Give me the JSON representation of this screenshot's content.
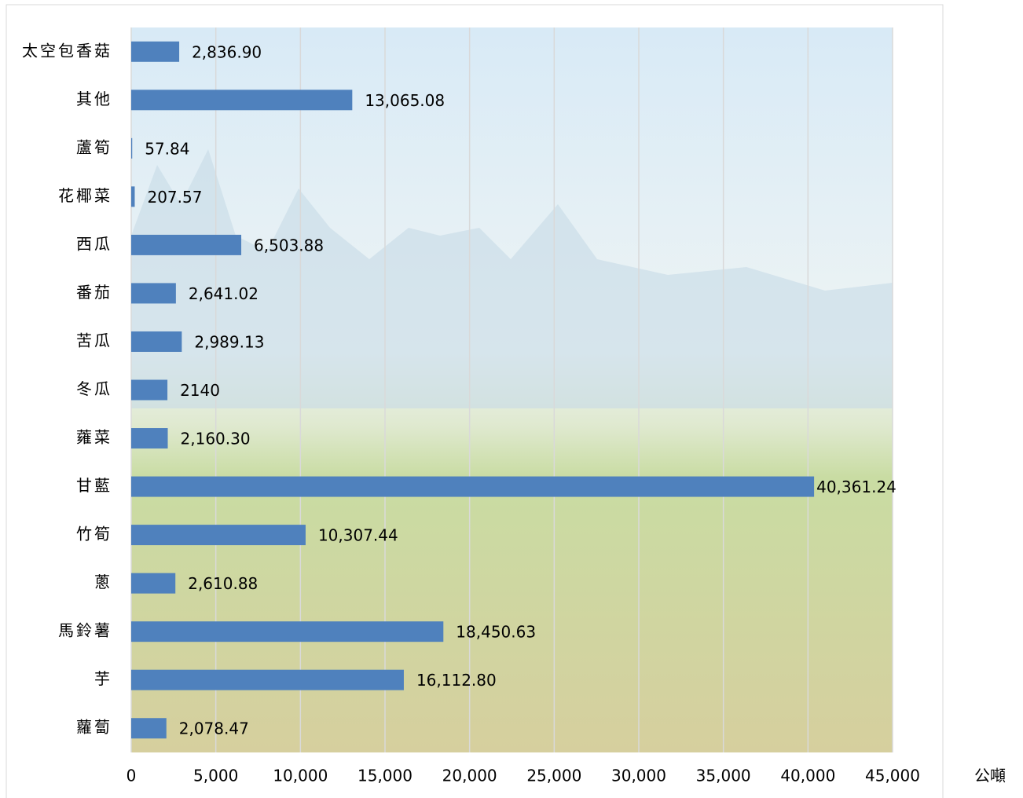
{
  "chart_data": {
    "type": "bar",
    "orientation": "horizontal",
    "x_label": "公噸",
    "categories": [
      "太空包香菇",
      "其他",
      "蘆筍",
      "花椰菜",
      "西瓜",
      "番茄",
      "苦瓜",
      "冬瓜",
      "蕹菜",
      "甘藍",
      "竹筍",
      "蔥",
      "馬鈴薯",
      "芋",
      "蘿蔔"
    ],
    "values": [
      2836.9,
      13065.08,
      57.84,
      207.57,
      6503.88,
      2641.02,
      2989.13,
      2140,
      2160.3,
      40361.24,
      10307.44,
      2610.88,
      18450.63,
      16112.8,
      2078.47
    ],
    "value_labels": [
      "2,836.90",
      "13,065.08",
      "57.84",
      "207.57",
      "6,503.88",
      "2,641.02",
      "2,989.13",
      "2140",
      "2,160.30",
      "40,361.24",
      "10,307.44",
      "2,610.88",
      "18,450.63",
      "16,112.80",
      "2,078.47"
    ],
    "color": "#4f81bd",
    "xlim": [
      0,
      45000
    ],
    "xticks": [
      0,
      {
        "value": 5000,
        "label": "5,000"
      },
      {
        "value": 10000,
        "label": "10,000"
      },
      {
        "value": 15000,
        "label": "15,000"
      },
      {
        "value": 20000,
        "label": "20,000"
      },
      {
        "value": 25000,
        "label": "25,000"
      },
      {
        "value": 30000,
        "label": "30,000"
      },
      {
        "value": 35000,
        "label": "35,000"
      },
      {
        "value": 40000,
        "label": "40,000"
      },
      {
        "value": 45000,
        "label": "45,000"
      }
    ],
    "grid": true
  }
}
